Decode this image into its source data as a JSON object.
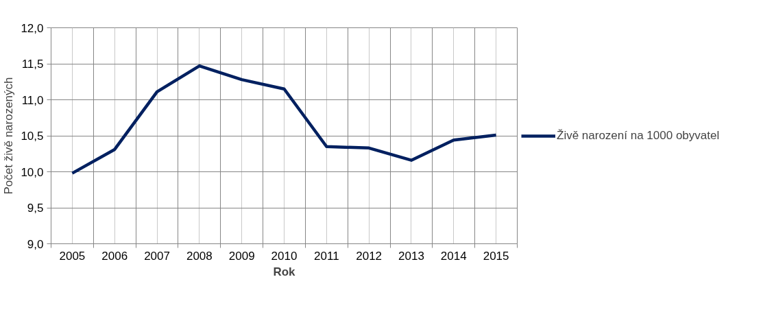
{
  "chart_data": {
    "type": "line",
    "xlabel": "Rok",
    "ylabel": "Počet živě narozených",
    "categories": [
      "2005",
      "2006",
      "2007",
      "2008",
      "2009",
      "2010",
      "2011",
      "2012",
      "2013",
      "2014",
      "2015"
    ],
    "series": [
      {
        "name": "Živě narození na 1000 obyvatel",
        "color": "#002060",
        "values": [
          9.98,
          10.31,
          11.11,
          11.47,
          11.28,
          11.15,
          10.35,
          10.33,
          10.16,
          10.44,
          10.51
        ]
      }
    ],
    "ylim": [
      9.0,
      12.0
    ],
    "yticks": [
      {
        "value": 9.0,
        "label": "9,0"
      },
      {
        "value": 9.5,
        "label": "9,5"
      },
      {
        "value": 10.0,
        "label": "10,0"
      },
      {
        "value": 10.5,
        "label": "10,5"
      },
      {
        "value": 11.0,
        "label": "11,0"
      },
      {
        "value": 11.5,
        "label": "11,5"
      },
      {
        "value": 12.0,
        "label": "12,0"
      }
    ],
    "grid": true,
    "legend": "right",
    "marker": "none",
    "line_style": "solid"
  }
}
